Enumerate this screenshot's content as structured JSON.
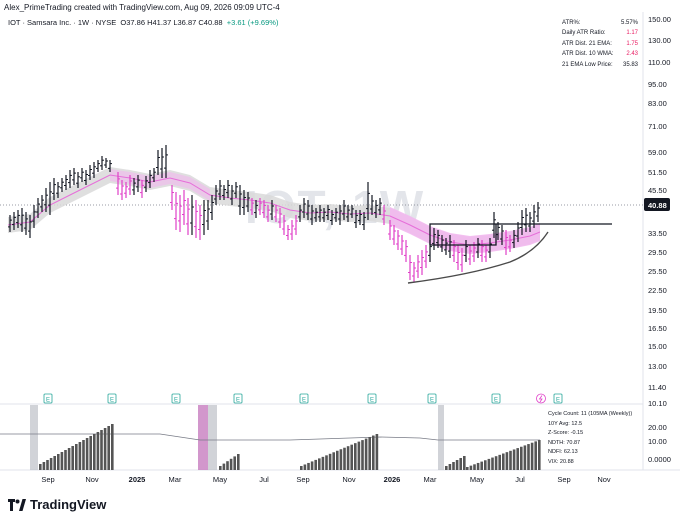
{
  "caption": "Alex_PrimeTrading created with TradingView.com, Aug 09, 2026 09:09 UTC-4",
  "symbol": {
    "name": "IOT · Samsara Inc. · 1W · NYSE",
    "ohlc": "O37.86  H41.37  L36.87  C40.88",
    "change": "+3.61 (+9.69%)"
  },
  "watermark": "IOT, 1W",
  "stats": [
    {
      "label": "ATR%:",
      "value": "5.57%",
      "color": "black"
    },
    {
      "label": "Daily ATR Ratio:",
      "value": "1.17",
      "color": "red"
    },
    {
      "label": "ATR Dist. 21 EMA:",
      "value": "1.75",
      "color": "red"
    },
    {
      "label": "ATR Dist. 10 WMA:",
      "value": "2.43",
      "color": "red"
    },
    {
      "label": "21 EMA Low Price:",
      "value": "35.83",
      "color": "black"
    }
  ],
  "price_axis": [
    "150.00",
    "130.00",
    "110.00",
    "95.00",
    "83.00",
    "71.00",
    "59.00",
    "51.50",
    "45.50",
    "40.88",
    "33.50",
    "29.50",
    "25.50",
    "22.50",
    "19.50",
    "16.50",
    "15.00",
    "13.00",
    "11.40",
    "10.10"
  ],
  "current_price": "40.88",
  "time_axis": [
    {
      "label": "Sep",
      "bold": false
    },
    {
      "label": "Nov",
      "bold": false
    },
    {
      "label": "2025",
      "bold": true
    },
    {
      "label": "Mar",
      "bold": false
    },
    {
      "label": "May",
      "bold": false
    },
    {
      "label": "Jul",
      "bold": false
    },
    {
      "label": "Sep",
      "bold": false
    },
    {
      "label": "Nov",
      "bold": false
    },
    {
      "label": "2026",
      "bold": true
    },
    {
      "label": "Mar",
      "bold": false
    },
    {
      "label": "May",
      "bold": false
    },
    {
      "label": "Jul",
      "bold": false
    },
    {
      "label": "Sep",
      "bold": false
    },
    {
      "label": "Nov",
      "bold": false
    }
  ],
  "earnings_marker": "E",
  "indicator_axis": [
    "20.00",
    "10.00",
    "0.0000"
  ],
  "cycle": [
    "Cycle Count: 11 (105MA (Weekly))",
    "10Y Avg: 12.5",
    "Z-Score: -0.15",
    "NDTH: 70.87",
    "NDFI: 62.13",
    "VIX: 20.88"
  ],
  "brand": "TradingView",
  "colors": {
    "bullish_bar": "#131722",
    "bearish_bar": "#e040c8",
    "ema_band": "#d9d9d9",
    "ema_band_pink": "#f2b8ee",
    "ema_line": "#e66fd9",
    "earnings": "#26a69a",
    "indicator_bar": "#555555",
    "highlight_gray": "#b2b5be",
    "highlight_pink": "#c77dbf"
  }
}
